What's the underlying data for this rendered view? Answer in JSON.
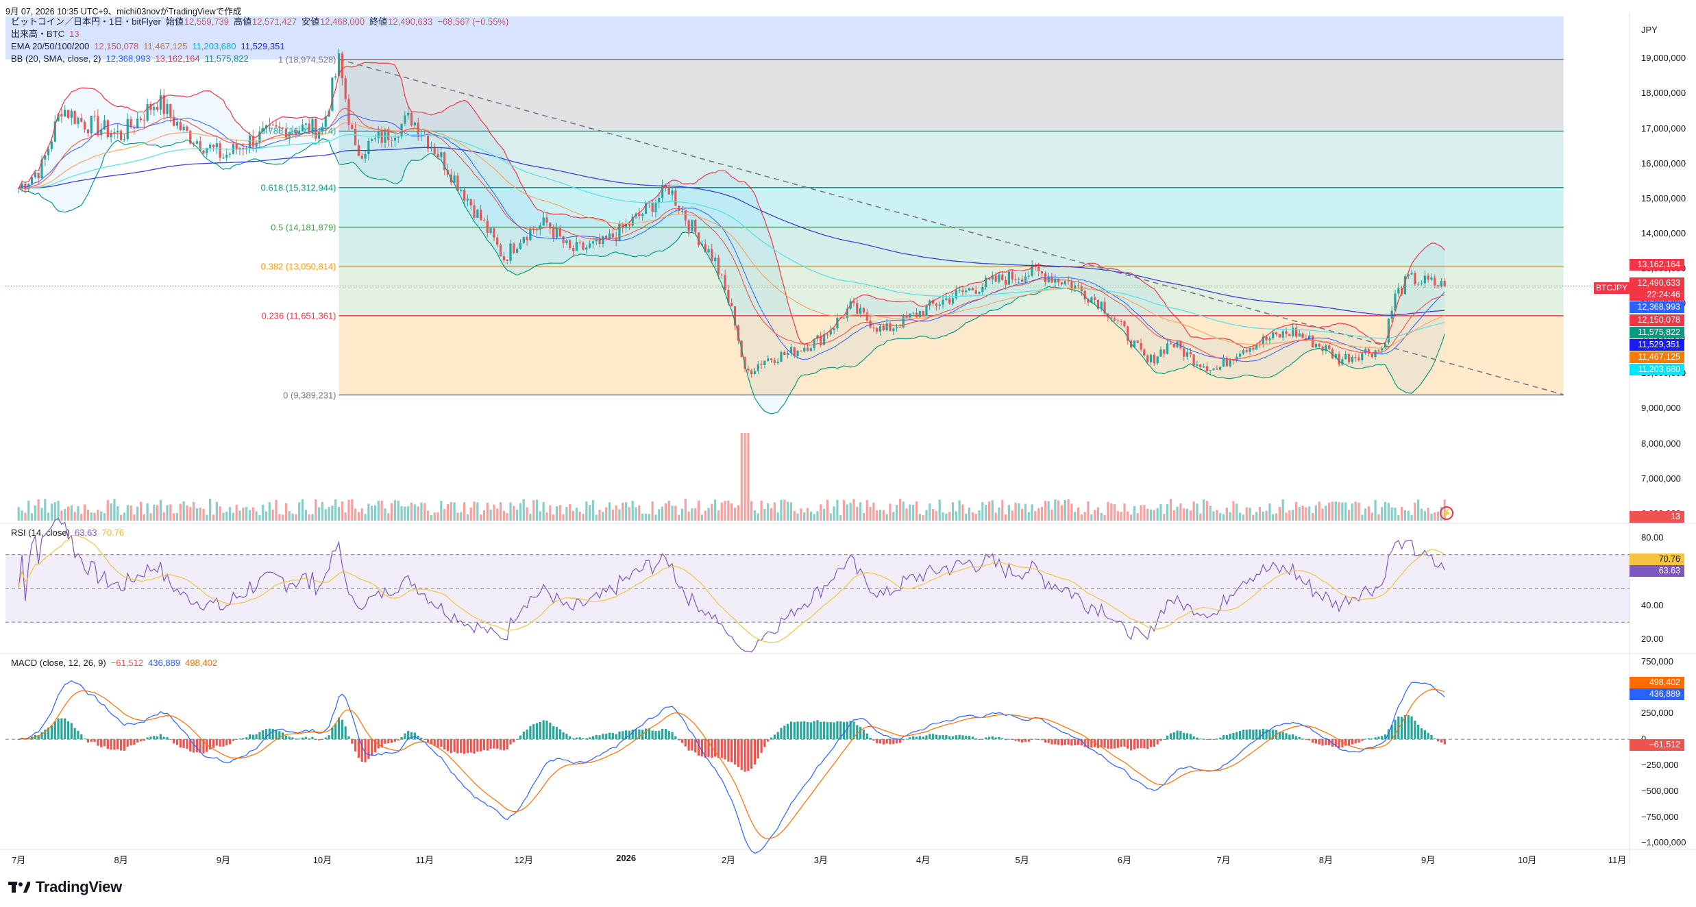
{
  "header": {
    "snapshot_line": "9月 07, 2026 10:35 UTC+9、michi03novがTradingViewで作成",
    "symbol_line": "ビットコイン／日本円・1日・bitFlyer",
    "ohlc": {
      "open_label": "始値",
      "open": "12,559,739",
      "high_label": "高値",
      "high": "12,571,427",
      "low_label": "安値",
      "low": "12,468,000",
      "close_label": "終値",
      "close": "12,490,633",
      "change": "−68,567 (−0.55%)"
    }
  },
  "legend": {
    "volume": {
      "label": "出来高・BTC",
      "value": "13"
    },
    "ema": {
      "label": "EMA 20/50/100/200",
      "values": [
        "12,150,078",
        "11,467,125",
        "11,203,680",
        "11,529,351"
      ]
    },
    "bb": {
      "label": "BB (20, SMA, close, 2)",
      "values": [
        "12,368,993",
        "13,162,164",
        "11,575,822"
      ]
    },
    "rsi": {
      "label": "RSI (14, close)",
      "values": [
        "63.63",
        "70.76"
      ]
    },
    "macd": {
      "label": "MACD (close, 12, 26, 9)",
      "values": [
        "−61,512",
        "436,889",
        "498,402"
      ]
    }
  },
  "currency": "JPY",
  "colors": {
    "up": "#26a69a",
    "down": "#ef5350",
    "ema20": "#ef5350",
    "ema50": "#f7a35c",
    "ema100": "#5ce1e6",
    "ema200": "#3f3fd6",
    "bb_basis": "#2962ff",
    "bb_upper": "#f23645",
    "bb_lower": "#089981",
    "rsi": "#7e57c2",
    "rsi_ma": "#f5c242",
    "macd": "#2962ff",
    "signal": "#ff6d00"
  },
  "fib_levels": [
    {
      "label": "1 (18,974,528)",
      "value": 18974528,
      "color": "#787b86"
    },
    {
      "label": "0.786 (16,923,574)",
      "value": 16923574,
      "color": "#26a69a"
    },
    {
      "label": "0.618 (15,312,944)",
      "value": 15312944,
      "color": "#089981"
    },
    {
      "label": "0.5 (14,181,879)",
      "value": 14181879,
      "color": "#43a047"
    },
    {
      "label": "0.382 (13,050,814)",
      "value": 13050814,
      "color": "#ff9800"
    },
    {
      "label": "0.236 (11,651,361)",
      "value": 11651361,
      "color": "#f23645"
    },
    {
      "label": "0 (9,389,231)",
      "value": 9389231,
      "color": "#787b86"
    }
  ],
  "price_axis": [
    "19,000,000",
    "18,000,000",
    "17,000,000",
    "16,000,000",
    "15,000,000",
    "14,000,000",
    "13,000,000",
    "12,000,000",
    "11,000,000",
    "10,000,000",
    "9,000,000",
    "8,000,000",
    "7,000,000",
    "6,000,000"
  ],
  "rsi_axis": [
    "80.00",
    "60.00",
    "40.00",
    "20.00"
  ],
  "macd_axis": [
    "750,000",
    "500,000",
    "250,000",
    "0",
    "−250,000",
    "−500,000",
    "−750,000",
    "−1,000,000"
  ],
  "time_axis": [
    "7月",
    "8月",
    "9月",
    "10月",
    "11月",
    "12月",
    "2026",
    "2月",
    "3月",
    "4月",
    "5月",
    "6月",
    "7月",
    "8月",
    "9月",
    "10月",
    "11月"
  ],
  "price_chips": [
    {
      "text": "13,162,164",
      "color": "#f23645"
    },
    {
      "text": "12,490,633",
      "color": "#f23645"
    },
    {
      "text": "22:24:46",
      "color": "#f23645"
    },
    {
      "text": "12,368,993",
      "color": "#2962ff"
    },
    {
      "text": "12,150,078",
      "color": "#f23645"
    },
    {
      "text": "11,575,822",
      "color": "#089981"
    },
    {
      "text": "11,529,351",
      "color": "#1a1aff"
    },
    {
      "text": "11,467,125",
      "color": "#f57c00"
    },
    {
      "text": "11,203,680",
      "color": "#00e5ff"
    }
  ],
  "symbol_tag": "BTCJPY",
  "volume_chip": "13",
  "rsi_chips": [
    {
      "text": "70.76",
      "color": "#f5c242"
    },
    {
      "text": "63.63",
      "color": "#7e57c2"
    }
  ],
  "macd_chips": [
    {
      "text": "498,402",
      "color": "#ff6d00"
    },
    {
      "text": "436,889",
      "color": "#2962ff"
    },
    {
      "text": "−61,512",
      "color": "#ef5350"
    }
  ],
  "brand": "TradingView",
  "chart_data": {
    "type": "candlestick",
    "series_path": [
      [
        "2025-07-01",
        15300000
      ],
      [
        "2025-07-08",
        15900000
      ],
      [
        "2025-07-14",
        17600000
      ],
      [
        "2025-07-20",
        17200000
      ],
      [
        "2025-08-01",
        16800000
      ],
      [
        "2025-08-12",
        17800000
      ],
      [
        "2025-08-20",
        16900000
      ],
      [
        "2025-09-01",
        16200000
      ],
      [
        "2025-09-10",
        16700000
      ],
      [
        "2025-09-20",
        17000000
      ],
      [
        "2025-10-01",
        17000000
      ],
      [
        "2025-10-06",
        18900000
      ],
      [
        "2025-10-11",
        16300000
      ],
      [
        "2025-10-20",
        16800000
      ],
      [
        "2025-10-28",
        17300000
      ],
      [
        "2025-11-05",
        16300000
      ],
      [
        "2025-11-12",
        15300000
      ],
      [
        "2025-11-20",
        14100000
      ],
      [
        "2025-11-25",
        13300000
      ],
      [
        "2025-12-01",
        14000000
      ],
      [
        "2025-12-08",
        14300000
      ],
      [
        "2025-12-15",
        13500000
      ],
      [
        "2025-12-25",
        13700000
      ],
      [
        "2026-01-05",
        14500000
      ],
      [
        "2026-01-14",
        15300000
      ],
      [
        "2026-01-20",
        14300000
      ],
      [
        "2026-01-28",
        13200000
      ],
      [
        "2026-02-03",
        11500000
      ],
      [
        "2026-02-06",
        10000000
      ],
      [
        "2026-02-12",
        10400000
      ],
      [
        "2026-02-20",
        10600000
      ],
      [
        "2026-03-01",
        11000000
      ],
      [
        "2026-03-10",
        11900000
      ],
      [
        "2026-03-20",
        11200000
      ],
      [
        "2026-03-28",
        11600000
      ],
      [
        "2026-04-05",
        12000000
      ],
      [
        "2026-04-15",
        12400000
      ],
      [
        "2026-04-25",
        12700000
      ],
      [
        "2026-05-05",
        12900000
      ],
      [
        "2026-05-15",
        12600000
      ],
      [
        "2026-05-25",
        12000000
      ],
      [
        "2026-06-01",
        11200000
      ],
      [
        "2026-06-08",
        10300000
      ],
      [
        "2026-06-15",
        10900000
      ],
      [
        "2026-06-22",
        10400000
      ],
      [
        "2026-06-29",
        10100000
      ],
      [
        "2026-07-06",
        10700000
      ],
      [
        "2026-07-15",
        11000000
      ],
      [
        "2026-07-22",
        11200000
      ],
      [
        "2026-08-01",
        10700000
      ],
      [
        "2026-08-05",
        10400000
      ],
      [
        "2026-08-12",
        10600000
      ],
      [
        "2026-08-18",
        10700000
      ],
      [
        "2026-08-22",
        12200000
      ],
      [
        "2026-08-26",
        12700000
      ],
      [
        "2026-09-01",
        12600000
      ],
      [
        "2026-09-06",
        12500000
      ]
    ],
    "trendline": [
      [
        "2025-10-06",
        18974528
      ],
      [
        "2026-10-12",
        9400000
      ]
    ],
    "ylim": [
      5800000,
      20200000
    ],
    "xlim": [
      "2025-06-27",
      "2026-11-01"
    ],
    "rsi_ylim": [
      13,
      87
    ],
    "rsi_band": [
      30,
      70
    ],
    "macd_ylim": [
      -1050000,
      800000
    ]
  }
}
